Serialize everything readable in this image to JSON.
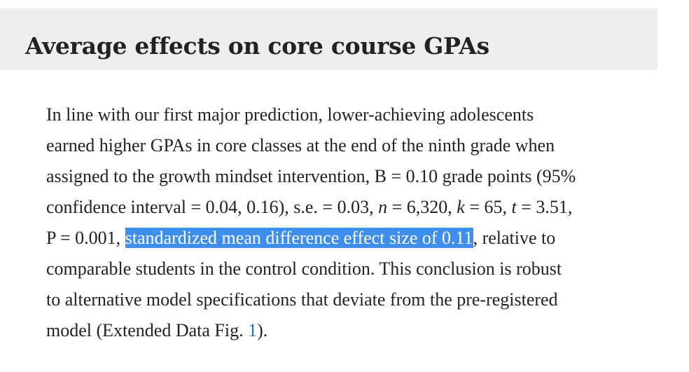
{
  "section": {
    "title": "Average effects on core course GPAs"
  },
  "paragraph": {
    "line1": "In line with our first major prediction, lower-achieving adolescents",
    "line2": "earned higher GPAs in core classes at the end of the ninth grade when",
    "line3": "assigned to the growth mindset intervention, B = 0.10 grade points (95%",
    "line4_a": "confidence interval = 0.04, 0.16), s.e. = 0.03, ",
    "n_symbol": "n",
    "line4_b": " = 6,320, ",
    "k_symbol": "k",
    "line4_c": " = 65, ",
    "t_symbol": "t",
    "line4_d": " = 3.51,",
    "line5_a": "P = 0.001, ",
    "highlighted_text": "standardized mean difference effect size of 0.11",
    "line5_b": ", relative to",
    "line6": "comparable students in the control condition. This conclusion is robust",
    "line7": "to alternative model specifications that deviate from the pre-registered",
    "line8_a": "model (Extended Data Fig. ",
    "figure_link": "1",
    "line8_b": ")."
  },
  "colors": {
    "header_band": "#eeeeee",
    "selection_highlight": "#3e8eed",
    "link": "#1f6fb2",
    "text": "#222222"
  }
}
